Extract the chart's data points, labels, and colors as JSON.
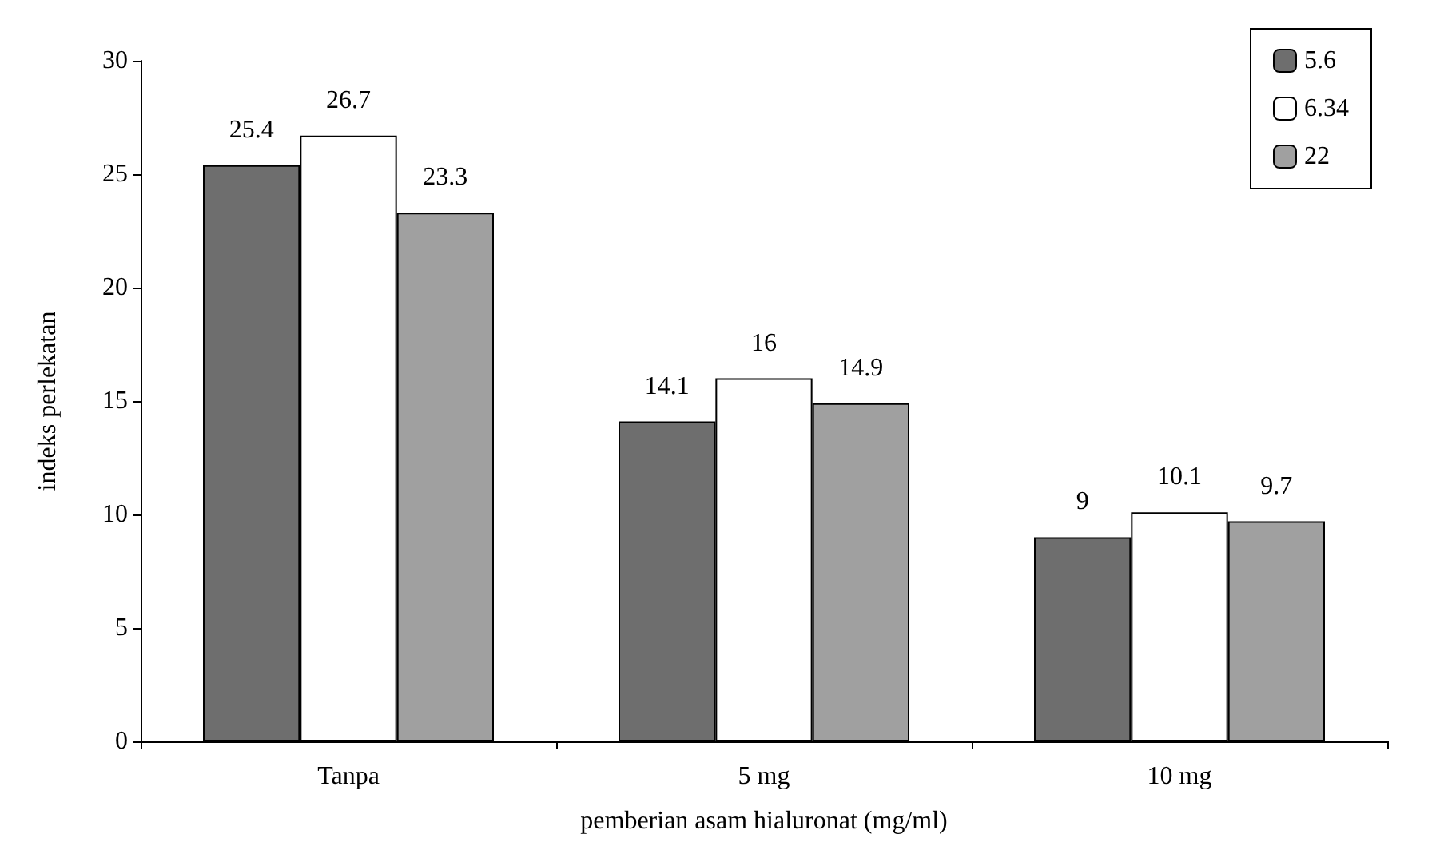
{
  "chart_data": {
    "type": "bar",
    "xlabel": "pemberian asam hialuronat (mg/ml)",
    "ylabel": "indeks perlekatan",
    "categories": [
      "Tanpa",
      "5 mg",
      "10 mg"
    ],
    "series": [
      {
        "name": "5.6",
        "color": "#6e6e6e",
        "values": [
          25.4,
          14.1,
          9
        ]
      },
      {
        "name": "6.34",
        "color": "#ffffff",
        "values": [
          26.7,
          16,
          10.1
        ]
      },
      {
        "name": "22",
        "color": "#a0a0a0",
        "values": [
          23.3,
          14.9,
          9.7
        ]
      }
    ],
    "ylim": [
      0,
      30
    ],
    "yticks": [
      0,
      5,
      10,
      15,
      20,
      25,
      30
    ],
    "grid": false,
    "legend": "top right",
    "data_labels": true
  }
}
